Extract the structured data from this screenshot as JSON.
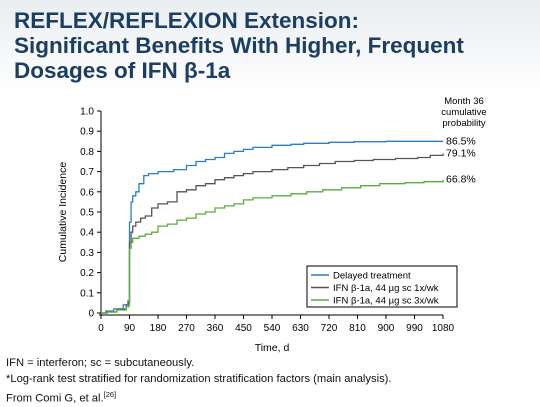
{
  "slide": {
    "title_lines": [
      "REFLEX/REFLEXION Extension:",
      "Significant Benefits With Higher, Frequent",
      "Dosages of IFN β-1a"
    ],
    "footnotes": {
      "line1": "IFN = interferon; sc = subcutaneously.",
      "line2": "*Log-rank test stratified for randomization stratification factors (main analysis).",
      "line3": "From Comi G, et al.",
      "line3_ref": "[26]"
    }
  },
  "chart_data": {
    "type": "line",
    "title": "",
    "xlabel": "Time, d",
    "ylabel": "Cumulative Incidence",
    "xlim": [
      0,
      1080
    ],
    "ylim": [
      0,
      1.0
    ],
    "x_ticks": [
      0,
      90,
      180,
      270,
      360,
      450,
      540,
      630,
      720,
      810,
      900,
      990,
      1080
    ],
    "y_ticks": [
      "0",
      "0.1",
      "0.2",
      "0.3",
      "0.4",
      "0.5",
      "0.6",
      "0.7",
      "0.8",
      "0.9",
      "1.0"
    ],
    "legend_position": "bottom-right",
    "annotation_header": [
      "Month 36",
      "cumulative",
      "probability"
    ],
    "series": [
      {
        "name": "Delayed treatment",
        "color": "#2a7fc0",
        "end_label": "86.5%",
        "points": [
          [
            0,
            0
          ],
          [
            15,
            0.01
          ],
          [
            40,
            0.02
          ],
          [
            70,
            0.04
          ],
          [
            85,
            0.06
          ],
          [
            90,
            0.45
          ],
          [
            95,
            0.55
          ],
          [
            100,
            0.58
          ],
          [
            110,
            0.6
          ],
          [
            120,
            0.64
          ],
          [
            135,
            0.68
          ],
          [
            150,
            0.69
          ],
          [
            180,
            0.7
          ],
          [
            230,
            0.71
          ],
          [
            270,
            0.73
          ],
          [
            300,
            0.75
          ],
          [
            330,
            0.76
          ],
          [
            360,
            0.77
          ],
          [
            390,
            0.79
          ],
          [
            420,
            0.8
          ],
          [
            450,
            0.81
          ],
          [
            480,
            0.82
          ],
          [
            540,
            0.83
          ],
          [
            600,
            0.835
          ],
          [
            640,
            0.84
          ],
          [
            720,
            0.845
          ],
          [
            800,
            0.848
          ],
          [
            900,
            0.85
          ],
          [
            1000,
            0.85
          ],
          [
            1080,
            0.85
          ]
        ]
      },
      {
        "name": "IFN β-1a, 44 µg sc 1x/wk",
        "color": "#555555",
        "end_label": "79.1%",
        "points": [
          [
            0,
            0
          ],
          [
            20,
            0.005
          ],
          [
            50,
            0.02
          ],
          [
            80,
            0.04
          ],
          [
            88,
            0.05
          ],
          [
            90,
            0.35
          ],
          [
            95,
            0.4
          ],
          [
            100,
            0.43
          ],
          [
            110,
            0.45
          ],
          [
            125,
            0.47
          ],
          [
            140,
            0.48
          ],
          [
            160,
            0.52
          ],
          [
            180,
            0.54
          ],
          [
            210,
            0.55
          ],
          [
            240,
            0.6
          ],
          [
            270,
            0.61
          ],
          [
            300,
            0.63
          ],
          [
            330,
            0.64
          ],
          [
            360,
            0.66
          ],
          [
            390,
            0.67
          ],
          [
            420,
            0.68
          ],
          [
            450,
            0.69
          ],
          [
            480,
            0.7
          ],
          [
            540,
            0.71
          ],
          [
            590,
            0.72
          ],
          [
            640,
            0.73
          ],
          [
            690,
            0.74
          ],
          [
            740,
            0.75
          ],
          [
            800,
            0.755
          ],
          [
            860,
            0.76
          ],
          [
            930,
            0.765
          ],
          [
            1000,
            0.77
          ],
          [
            1040,
            0.78
          ],
          [
            1080,
            0.79
          ]
        ]
      },
      {
        "name": "IFN β-1a, 44 µg sc 3x/wk",
        "color": "#5aac3c",
        "end_label": "66.8%",
        "points": [
          [
            0,
            0
          ],
          [
            20,
            0.005
          ],
          [
            50,
            0.015
          ],
          [
            80,
            0.03
          ],
          [
            88,
            0.04
          ],
          [
            90,
            0.32
          ],
          [
            95,
            0.35
          ],
          [
            100,
            0.37
          ],
          [
            120,
            0.38
          ],
          [
            140,
            0.39
          ],
          [
            160,
            0.4
          ],
          [
            180,
            0.43
          ],
          [
            210,
            0.44
          ],
          [
            240,
            0.46
          ],
          [
            270,
            0.47
          ],
          [
            300,
            0.49
          ],
          [
            330,
            0.5
          ],
          [
            360,
            0.52
          ],
          [
            390,
            0.53
          ],
          [
            420,
            0.54
          ],
          [
            450,
            0.56
          ],
          [
            480,
            0.57
          ],
          [
            540,
            0.58
          ],
          [
            600,
            0.59
          ],
          [
            650,
            0.6
          ],
          [
            700,
            0.61
          ],
          [
            760,
            0.62
          ],
          [
            820,
            0.63
          ],
          [
            880,
            0.64
          ],
          [
            960,
            0.645
          ],
          [
            1020,
            0.65
          ],
          [
            1080,
            0.66
          ]
        ]
      }
    ]
  }
}
